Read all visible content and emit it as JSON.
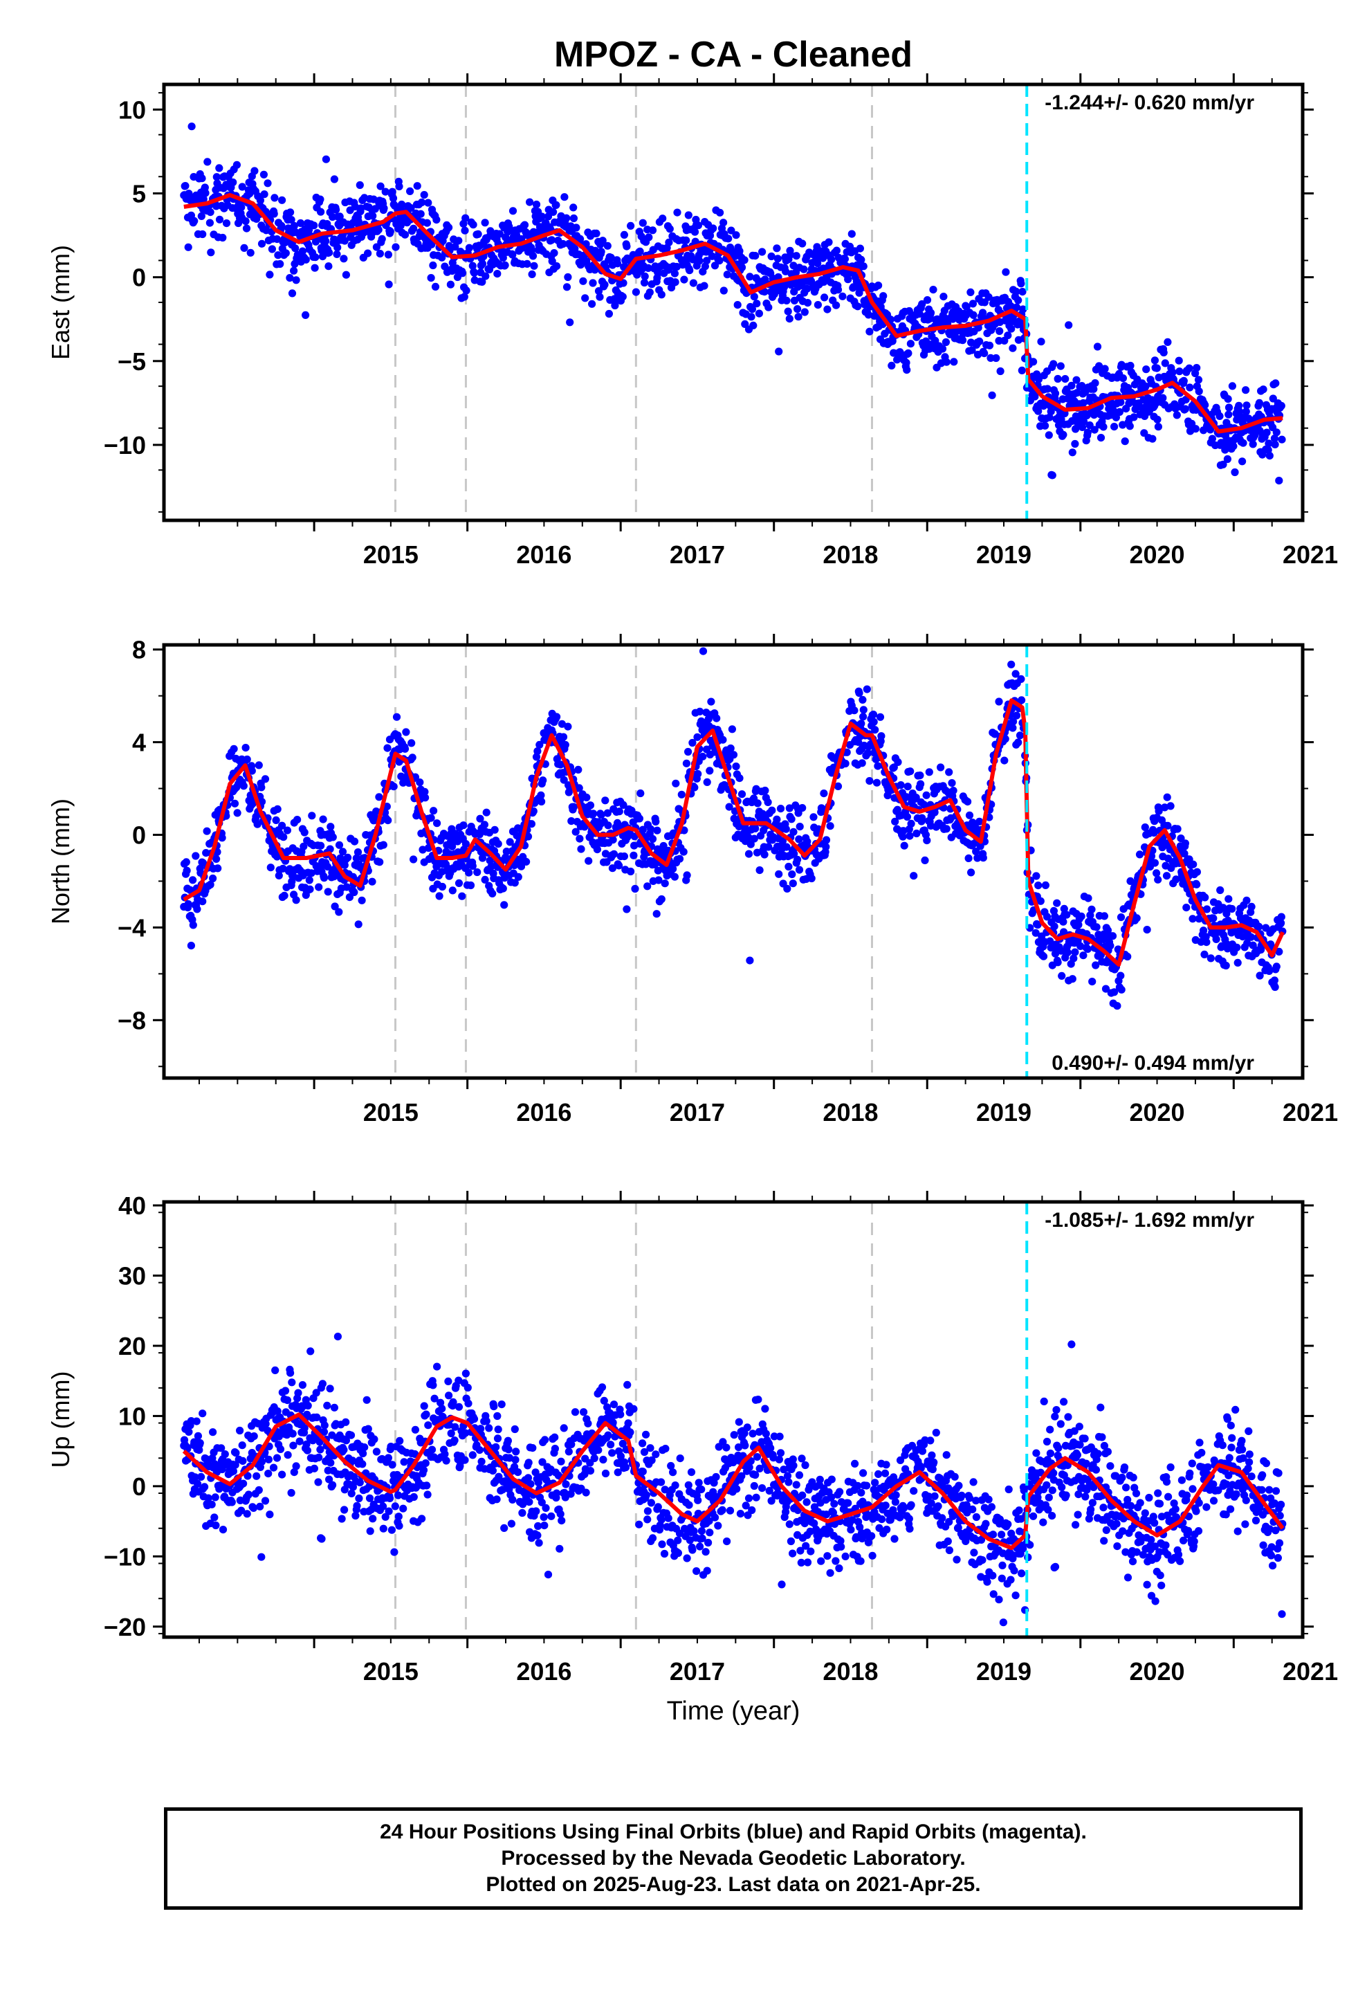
{
  "title": "MPOZ  - CA - Cleaned",
  "xlabel": "Time (year)",
  "colors": {
    "points": "#0000ff",
    "fit": "#ff0000",
    "event_line": "#00e5ff",
    "grid_line": "#c8c8c8"
  },
  "footer": [
    "24 Hour Positions Using Final Orbits (blue) and Rapid Orbits (magenta).",
    "Processed by the Nevada Geodetic Laboratory.",
    "Plotted on 2025-Aug-23. Last data on 2021-Apr-25."
  ],
  "chart_data": [
    {
      "type": "scatter",
      "panel": "east",
      "ylabel": "East (mm)",
      "rate_label": "-1.244+/- 0.620 mm/yr",
      "rate_label_position": "top-right",
      "xlim": [
        2014.02,
        2021.45
      ],
      "ylim": [
        -14.5,
        11.5
      ],
      "yticks": [
        -10,
        -5,
        0,
        5,
        10
      ],
      "ytick_labels": [
        "−10",
        "−5",
        "0",
        "5",
        "10"
      ],
      "xticks": [
        2015,
        2016,
        2017,
        2018,
        2019,
        2020,
        2021
      ],
      "xtick_labels": [
        "2015",
        "2016",
        "2017",
        "2018",
        "2019",
        "2020",
        "2021"
      ],
      "equipment_changes": [
        2015.53,
        2015.99,
        2017.1,
        2018.64
      ],
      "event": 2019.65,
      "series": [
        {
          "kind": "fit",
          "x": [
            2014.15,
            2014.3,
            2014.45,
            2014.6,
            2014.75,
            2014.9,
            2015.05,
            2015.25,
            2015.45,
            2015.53,
            2015.6,
            2015.75,
            2015.9,
            2016.05,
            2016.2,
            2016.35,
            2016.5,
            2016.6,
            2016.75,
            2016.9,
            2017.0,
            2017.1,
            2017.25,
            2017.4,
            2017.55,
            2017.7,
            2017.85,
            2018.0,
            2018.15,
            2018.3,
            2018.45,
            2018.55,
            2018.64,
            2018.8,
            2018.95,
            2019.1,
            2019.25,
            2019.4,
            2019.55,
            2019.64,
            2019.66,
            2019.75,
            2019.9,
            2020.05,
            2020.2,
            2020.35,
            2020.5,
            2020.6,
            2020.75,
            2020.9,
            2021.05,
            2021.2,
            2021.32
          ],
          "y": [
            4.2,
            4.4,
            4.9,
            4.4,
            2.8,
            2.1,
            2.6,
            2.8,
            3.3,
            3.8,
            3.9,
            2.5,
            1.2,
            1.3,
            1.8,
            2.0,
            2.5,
            2.8,
            1.8,
            0.2,
            -0.1,
            1.1,
            1.3,
            1.6,
            2.0,
            1.3,
            -0.9,
            -0.3,
            0.0,
            0.2,
            0.6,
            0.4,
            -1.5,
            -3.5,
            -3.2,
            -3.0,
            -2.9,
            -2.6,
            -2.0,
            -2.5,
            -6.1,
            -7.1,
            -7.9,
            -7.8,
            -7.2,
            -7.1,
            -6.7,
            -6.3,
            -7.4,
            -9.2,
            -9.0,
            -8.5,
            -8.4
          ]
        }
      ]
    },
    {
      "type": "scatter",
      "panel": "north",
      "ylabel": "North (mm)",
      "rate_label": "0.490+/- 0.494 mm/yr",
      "rate_label_position": "bottom-right",
      "xlim": [
        2014.02,
        2021.45
      ],
      "ylim": [
        -10.5,
        8.2
      ],
      "yticks": [
        -8,
        -4,
        0,
        4,
        8
      ],
      "ytick_labels": [
        "−8",
        "−4",
        "0",
        "4",
        "8"
      ],
      "xticks": [
        2015,
        2016,
        2017,
        2018,
        2019,
        2020,
        2021
      ],
      "xtick_labels": [
        "2015",
        "2016",
        "2017",
        "2018",
        "2019",
        "2020",
        "2021"
      ],
      "equipment_changes": [
        2015.53,
        2015.99,
        2017.1,
        2018.64
      ],
      "event": 2019.65,
      "series": [
        {
          "kind": "fit",
          "x": [
            2014.15,
            2014.25,
            2014.35,
            2014.45,
            2014.55,
            2014.65,
            2014.8,
            2014.95,
            2015.1,
            2015.2,
            2015.3,
            2015.4,
            2015.53,
            2015.6,
            2015.7,
            2015.8,
            2015.9,
            2015.99,
            2016.05,
            2016.15,
            2016.25,
            2016.35,
            2016.45,
            2016.55,
            2016.65,
            2016.75,
            2016.85,
            2016.95,
            2017.05,
            2017.1,
            2017.2,
            2017.3,
            2017.4,
            2017.5,
            2017.6,
            2017.7,
            2017.8,
            2017.95,
            2018.1,
            2018.2,
            2018.3,
            2018.4,
            2018.5,
            2018.6,
            2018.64,
            2018.75,
            2018.85,
            2018.95,
            2019.05,
            2019.15,
            2019.25,
            2019.35,
            2019.45,
            2019.55,
            2019.62,
            2019.64,
            2019.66,
            2019.75,
            2019.85,
            2019.95,
            2020.05,
            2020.15,
            2020.25,
            2020.35,
            2020.45,
            2020.55,
            2020.65,
            2020.75,
            2020.85,
            2020.95,
            2021.05,
            2021.15,
            2021.25,
            2021.32
          ],
          "y": [
            -2.8,
            -2.4,
            -0.5,
            2.2,
            3.0,
            1.0,
            -1.0,
            -1.0,
            -0.8,
            -1.8,
            -2.2,
            0.0,
            3.5,
            3.2,
            1.0,
            -1.0,
            -1.0,
            -0.9,
            -0.2,
            -0.8,
            -1.5,
            -0.5,
            2.5,
            4.3,
            3.0,
            0.8,
            0.0,
            0.0,
            0.3,
            0.2,
            -0.8,
            -1.3,
            0.5,
            3.8,
            4.5,
            2.5,
            0.5,
            0.5,
            -0.2,
            -0.9,
            -0.2,
            2.5,
            4.8,
            4.3,
            4.3,
            2.5,
            1.2,
            1.0,
            1.2,
            1.5,
            0.2,
            -0.3,
            3.5,
            5.8,
            5.5,
            4.5,
            -2.0,
            -3.8,
            -4.5,
            -4.3,
            -4.5,
            -5.0,
            -5.6,
            -3.0,
            -0.5,
            0.2,
            -1.0,
            -2.8,
            -4.0,
            -4.0,
            -3.9,
            -4.2,
            -5.2,
            -4.2
          ]
        }
      ]
    },
    {
      "type": "scatter",
      "panel": "up",
      "ylabel": "Up (mm)",
      "rate_label": "-1.085+/- 1.692 mm/yr",
      "rate_label_position": "top-right",
      "xlim": [
        2014.02,
        2021.45
      ],
      "ylim": [
        -21.5,
        40.5
      ],
      "yticks": [
        -20,
        -10,
        0,
        10,
        20,
        30,
        40
      ],
      "ytick_labels": [
        "−20",
        "−10",
        "0",
        "10",
        "20",
        "30",
        "40"
      ],
      "xticks": [
        2015,
        2016,
        2017,
        2018,
        2019,
        2020,
        2021
      ],
      "xtick_labels": [
        "2015",
        "2016",
        "2017",
        "2018",
        "2019",
        "2020",
        "2021"
      ],
      "equipment_changes": [
        2015.53,
        2015.99,
        2017.1,
        2018.64
      ],
      "event": 2019.65,
      "series": [
        {
          "kind": "fit",
          "x": [
            2014.15,
            2014.3,
            2014.45,
            2014.6,
            2014.75,
            2014.9,
            2015.05,
            2015.2,
            2015.35,
            2015.5,
            2015.53,
            2015.65,
            2015.8,
            2015.9,
            2016.0,
            2016.15,
            2016.3,
            2016.45,
            2016.6,
            2016.75,
            2016.9,
            2017.05,
            2017.1,
            2017.25,
            2017.4,
            2017.5,
            2017.65,
            2017.8,
            2017.9,
            2018.05,
            2018.2,
            2018.35,
            2018.5,
            2018.64,
            2018.8,
            2018.95,
            2019.1,
            2019.25,
            2019.4,
            2019.55,
            2019.64,
            2019.66,
            2019.8,
            2019.9,
            2020.05,
            2020.2,
            2020.35,
            2020.5,
            2020.65,
            2020.8,
            2020.9,
            2021.05,
            2021.2,
            2021.32
          ],
          "y": [
            5.0,
            2.0,
            0.3,
            3.0,
            8.5,
            10.2,
            7.0,
            3.5,
            0.8,
            -0.8,
            -0.5,
            3.0,
            8.5,
            9.8,
            9.0,
            5.0,
            1.0,
            -1.0,
            0.5,
            5.0,
            9.0,
            6.5,
            1.5,
            -1.0,
            -4.0,
            -5.0,
            -2.0,
            3.5,
            5.5,
            0.0,
            -3.5,
            -5.0,
            -4.0,
            -3.0,
            0.0,
            2.0,
            -1.0,
            -5.0,
            -7.5,
            -8.8,
            -7.0,
            -1.5,
            2.5,
            4.0,
            2.0,
            -2.0,
            -5.0,
            -7.0,
            -5.0,
            0.0,
            3.0,
            2.0,
            -2.5,
            -6.0
          ]
        }
      ]
    }
  ]
}
